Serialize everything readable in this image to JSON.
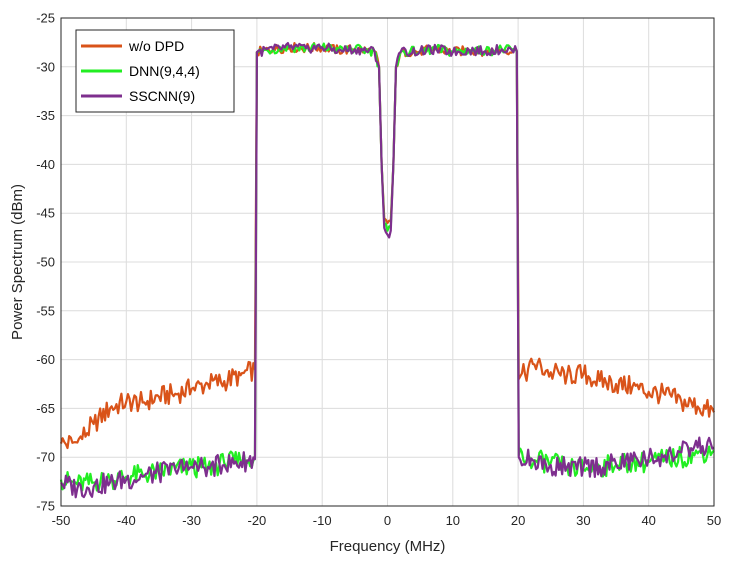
{
  "chart_data": {
    "type": "line",
    "title": "",
    "xlabel": "Frequency (MHz)",
    "ylabel": "Power Spectrum (dBm)",
    "xlim": [
      -50,
      50
    ],
    "ylim": [
      -75,
      -25
    ],
    "xticks": [
      -50,
      -40,
      -30,
      -20,
      -10,
      0,
      10,
      20,
      30,
      40,
      50
    ],
    "yticks": [
      -25,
      -30,
      -35,
      -40,
      -45,
      -50,
      -55,
      -60,
      -65,
      -70,
      -75
    ],
    "grid": true,
    "legend_position": "top-left",
    "series": [
      {
        "name": "w/o DPD",
        "color": "#d95319",
        "points": [
          [
            -50,
            -68.6
          ],
          [
            -47.5,
            -68.5
          ],
          [
            -45,
            -66.6
          ],
          [
            -42.5,
            -65.0
          ],
          [
            -40,
            -64.3
          ],
          [
            -37.5,
            -64.4
          ],
          [
            -35,
            -63.8
          ],
          [
            -32.5,
            -63.5
          ],
          [
            -30,
            -63.0
          ],
          [
            -27.5,
            -62.5
          ],
          [
            -25,
            -62.2
          ],
          [
            -22.5,
            -61.6
          ],
          [
            -20.3,
            -61.0
          ],
          [
            -20.0,
            -28.5
          ],
          [
            -17.5,
            -28.2
          ],
          [
            -15,
            -28.0
          ],
          [
            -12.5,
            -28.1
          ],
          [
            -10,
            -28.0
          ],
          [
            -7.5,
            -28.3
          ],
          [
            -5,
            -28.2
          ],
          [
            -2.0,
            -28.4
          ],
          [
            -1.3,
            -30
          ],
          [
            -0.9,
            -40
          ],
          [
            -0.5,
            -45.5
          ],
          [
            0,
            -46.0
          ],
          [
            0.5,
            -45.8
          ],
          [
            0.9,
            -40
          ],
          [
            1.3,
            -30
          ],
          [
            2.0,
            -28.5
          ],
          [
            5,
            -28.4
          ],
          [
            7.5,
            -28.2
          ],
          [
            10,
            -28.5
          ],
          [
            12.5,
            -28.3
          ],
          [
            15,
            -28.4
          ],
          [
            17.5,
            -28.2
          ],
          [
            19.8,
            -28.4
          ],
          [
            20.1,
            -62.0
          ],
          [
            22.5,
            -60.5
          ],
          [
            25,
            -61.3
          ],
          [
            27.5,
            -61.6
          ],
          [
            30,
            -61.5
          ],
          [
            32.5,
            -62.2
          ],
          [
            35,
            -62.5
          ],
          [
            37.5,
            -62.8
          ],
          [
            40,
            -63.3
          ],
          [
            42.5,
            -63.6
          ],
          [
            45,
            -64.3
          ],
          [
            47.5,
            -64.8
          ],
          [
            50,
            -65.4
          ]
        ]
      },
      {
        "name": "DNN(9,4,4)",
        "color": "#22ee22",
        "points": [
          [
            -50,
            -72.3
          ],
          [
            -47.5,
            -72.8
          ],
          [
            -45,
            -72.6
          ],
          [
            -42.5,
            -72.3
          ],
          [
            -40,
            -72.0
          ],
          [
            -37.5,
            -71.8
          ],
          [
            -35,
            -71.5
          ],
          [
            -32.5,
            -71.2
          ],
          [
            -30,
            -71.0
          ],
          [
            -27.5,
            -71.1
          ],
          [
            -25,
            -70.6
          ],
          [
            -22.5,
            -70.4
          ],
          [
            -20.3,
            -70.0
          ],
          [
            -20.0,
            -28.5
          ],
          [
            -17.5,
            -28.2
          ],
          [
            -15,
            -28.0
          ],
          [
            -12.5,
            -28.1
          ],
          [
            -10,
            -28.0
          ],
          [
            -7.5,
            -28.3
          ],
          [
            -5,
            -28.2
          ],
          [
            -2.0,
            -28.4
          ],
          [
            -1.3,
            -30
          ],
          [
            -0.9,
            -40
          ],
          [
            -0.5,
            -46.0
          ],
          [
            0,
            -46.8
          ],
          [
            0.5,
            -46.4
          ],
          [
            0.9,
            -40
          ],
          [
            1.3,
            -30
          ],
          [
            2.0,
            -28.5
          ],
          [
            5,
            -28.4
          ],
          [
            7.5,
            -28.2
          ],
          [
            10,
            -28.5
          ],
          [
            12.5,
            -28.3
          ],
          [
            15,
            -28.4
          ],
          [
            17.5,
            -28.2
          ],
          [
            19.8,
            -28.4
          ],
          [
            20.1,
            -69.8
          ],
          [
            22.5,
            -70.3
          ],
          [
            25,
            -70.6
          ],
          [
            27.5,
            -71.0
          ],
          [
            30,
            -71.2
          ],
          [
            32.5,
            -71.0
          ],
          [
            35,
            -70.8
          ],
          [
            37.5,
            -70.6
          ],
          [
            40,
            -70.5
          ],
          [
            42.5,
            -70.2
          ],
          [
            45,
            -70.0
          ],
          [
            47.5,
            -69.6
          ],
          [
            50,
            -69.3
          ]
        ]
      },
      {
        "name": "SSCNN(9)",
        "color": "#7e2f8e",
        "points": [
          [
            -50,
            -72.6
          ],
          [
            -47.5,
            -73.2
          ],
          [
            -45,
            -73.0
          ],
          [
            -42.5,
            -72.6
          ],
          [
            -40,
            -72.3
          ],
          [
            -37.5,
            -72.0
          ],
          [
            -35,
            -71.6
          ],
          [
            -32.5,
            -71.3
          ],
          [
            -30,
            -71.0
          ],
          [
            -27.5,
            -71.0
          ],
          [
            -25,
            -70.8
          ],
          [
            -22.5,
            -70.5
          ],
          [
            -20.3,
            -70.2
          ],
          [
            -20.0,
            -28.5
          ],
          [
            -17.5,
            -28.2
          ],
          [
            -15,
            -28.0
          ],
          [
            -12.5,
            -28.1
          ],
          [
            -10,
            -28.0
          ],
          [
            -7.5,
            -28.3
          ],
          [
            -5,
            -28.2
          ],
          [
            -2.0,
            -28.4
          ],
          [
            -1.3,
            -30
          ],
          [
            -0.9,
            -40
          ],
          [
            -0.5,
            -46.5
          ],
          [
            0,
            -47.2
          ],
          [
            0.5,
            -46.8
          ],
          [
            0.9,
            -40
          ],
          [
            1.3,
            -30
          ],
          [
            2.0,
            -28.5
          ],
          [
            5,
            -28.4
          ],
          [
            7.5,
            -28.2
          ],
          [
            10,
            -28.5
          ],
          [
            12.5,
            -28.3
          ],
          [
            15,
            -28.4
          ],
          [
            17.5,
            -28.2
          ],
          [
            19.8,
            -28.4
          ],
          [
            20.1,
            -70.0
          ],
          [
            22.5,
            -70.4
          ],
          [
            25,
            -70.8
          ],
          [
            27.5,
            -71.0
          ],
          [
            30,
            -71.1
          ],
          [
            32.5,
            -70.9
          ],
          [
            35,
            -70.7
          ],
          [
            37.5,
            -70.4
          ],
          [
            40,
            -70.1
          ],
          [
            42.5,
            -69.8
          ],
          [
            45,
            -69.5
          ],
          [
            47.5,
            -69.0
          ],
          [
            50,
            -69.0
          ]
        ]
      }
    ]
  }
}
